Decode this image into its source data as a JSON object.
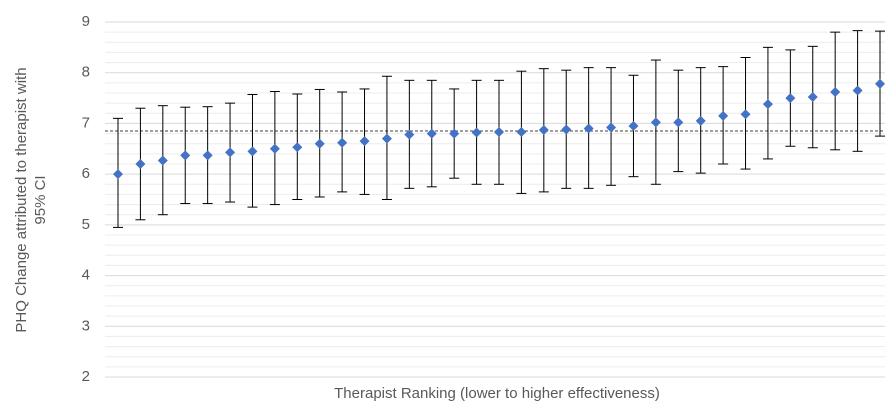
{
  "chart_data": {
    "type": "errorbar",
    "y_label": [
      "PHQ Change attributed to therapist with",
      "95% CI"
    ],
    "x_label": "Therapist Ranking (lower to higher effectiveness)",
    "categories": [
      null,
      null,
      null,
      null,
      null,
      null,
      null,
      null,
      null,
      null,
      null,
      null,
      null,
      null,
      null,
      null,
      null,
      null,
      null,
      null,
      null,
      null,
      null,
      null,
      null,
      null,
      null,
      null,
      null,
      null,
      null,
      null,
      null,
      null,
      null
    ],
    "series": [
      {
        "color": "#4472c4",
        "values": [
          6.0,
          6.2,
          6.27,
          6.37,
          6.37,
          6.43,
          6.45,
          6.5,
          6.53,
          6.6,
          6.62,
          6.65,
          6.7,
          6.78,
          6.8,
          6.8,
          6.82,
          6.83,
          6.83,
          6.87,
          6.88,
          6.9,
          6.92,
          6.95,
          7.02,
          7.02,
          7.05,
          7.15,
          7.18,
          7.38,
          7.5,
          7.52,
          7.62,
          7.65,
          7.78
        ],
        "lower": [
          4.95,
          5.1,
          5.2,
          5.42,
          5.42,
          5.45,
          5.35,
          5.4,
          5.5,
          5.55,
          5.65,
          5.6,
          5.5,
          5.72,
          5.75,
          5.92,
          5.8,
          5.8,
          5.62,
          5.65,
          5.72,
          5.72,
          5.78,
          5.95,
          5.8,
          6.05,
          6.02,
          6.2,
          6.1,
          6.3,
          6.55,
          6.52,
          6.48,
          6.45,
          6.75
        ],
        "upper": [
          7.1,
          7.3,
          7.35,
          7.32,
          7.33,
          7.4,
          7.57,
          7.63,
          7.58,
          7.67,
          7.62,
          7.68,
          7.93,
          7.85,
          7.85,
          7.68,
          7.85,
          7.85,
          8.03,
          8.08,
          8.05,
          8.1,
          8.1,
          7.95,
          8.25,
          8.05,
          8.1,
          8.12,
          8.3,
          8.5,
          8.45,
          8.52,
          8.8,
          8.83,
          8.82
        ]
      }
    ],
    "reference_line": 6.85,
    "ylim": [
      2,
      9
    ],
    "yticks": [
      2,
      3,
      4,
      5,
      6,
      7,
      8,
      9
    ],
    "grid": true
  }
}
